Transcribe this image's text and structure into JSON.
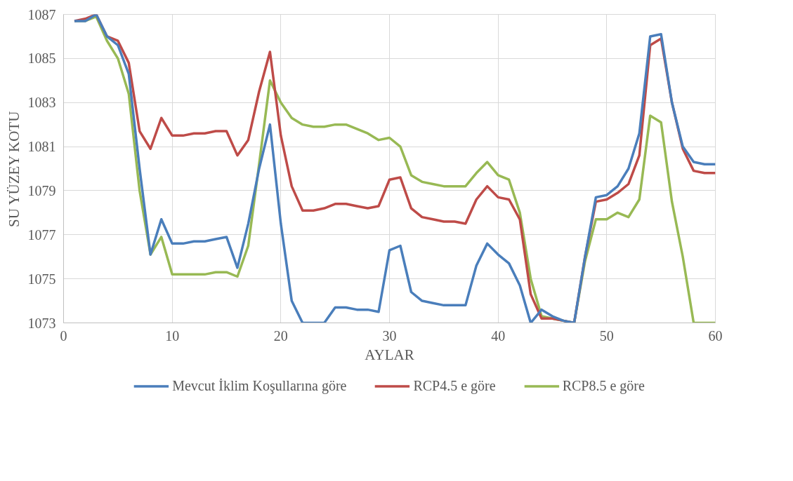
{
  "chart_data": {
    "type": "line",
    "xlabel": "AYLAR",
    "ylabel": "SU YÜZEY KOTU",
    "x": [
      1,
      2,
      3,
      4,
      5,
      6,
      7,
      8,
      9,
      10,
      11,
      12,
      13,
      14,
      15,
      16,
      17,
      18,
      19,
      20,
      21,
      22,
      23,
      24,
      25,
      26,
      27,
      28,
      29,
      30,
      31,
      32,
      33,
      34,
      35,
      36,
      37,
      38,
      39,
      40,
      41,
      42,
      43,
      44,
      45,
      46,
      47,
      48,
      49,
      50,
      51,
      52,
      53,
      54,
      55,
      56,
      57,
      58,
      59,
      60
    ],
    "series": [
      {
        "name": "Mevcut İklim Koşullarına göre",
        "color": "#4a7ebb",
        "values": [
          1086.7,
          1086.7,
          1087.0,
          1086.0,
          1085.6,
          1084.3,
          1080.0,
          1076.1,
          1077.7,
          1076.6,
          1076.6,
          1076.7,
          1076.7,
          1076.8,
          1076.9,
          1075.5,
          1077.5,
          1080.0,
          1082.0,
          1077.5,
          1074.0,
          1073.0,
          1073.0,
          1073.0,
          1073.7,
          1073.7,
          1073.6,
          1073.6,
          1073.5,
          1076.3,
          1076.5,
          1074.4,
          1074.0,
          1073.9,
          1073.8,
          1073.8,
          1073.8,
          1075.6,
          1076.6,
          1076.1,
          1075.7,
          1074.7,
          1073.0,
          1073.6,
          1073.3,
          1073.1,
          1073.0,
          1076.0,
          1078.7,
          1078.8,
          1079.2,
          1080.0,
          1081.6,
          1086.0,
          1086.1,
          1083.0,
          1081.0,
          1080.3,
          1080.2,
          1080.2
        ]
      },
      {
        "name": "RCP4.5 e göre",
        "color": "#be4b48",
        "values": [
          1086.7,
          1086.8,
          1087.0,
          1086.0,
          1085.8,
          1084.8,
          1081.7,
          1080.9,
          1082.3,
          1081.5,
          1081.5,
          1081.6,
          1081.6,
          1081.7,
          1081.7,
          1080.6,
          1081.3,
          1083.5,
          1085.3,
          1081.5,
          1079.2,
          1078.1,
          1078.1,
          1078.2,
          1078.4,
          1078.4,
          1078.3,
          1078.2,
          1078.3,
          1079.5,
          1079.6,
          1078.2,
          1077.8,
          1077.7,
          1077.6,
          1077.6,
          1077.5,
          1078.6,
          1079.2,
          1078.7,
          1078.6,
          1077.7,
          1074.3,
          1073.2,
          1073.2,
          1073.1,
          1073.0,
          1076.0,
          1078.5,
          1078.6,
          1078.9,
          1079.3,
          1080.6,
          1085.6,
          1085.9,
          1083.0,
          1080.9,
          1079.9,
          1079.8,
          1079.8
        ]
      },
      {
        "name": "RCP8.5 e göre",
        "color": "#98b954",
        "values": [
          1086.7,
          1086.7,
          1086.9,
          1085.8,
          1085.0,
          1083.4,
          1079.0,
          1076.1,
          1076.9,
          1075.2,
          1075.2,
          1075.2,
          1075.2,
          1075.3,
          1075.3,
          1075.1,
          1076.5,
          1080.2,
          1084.0,
          1083.0,
          1082.3,
          1082.0,
          1081.9,
          1081.9,
          1082.0,
          1082.0,
          1081.8,
          1081.6,
          1081.3,
          1081.4,
          1081.0,
          1079.7,
          1079.4,
          1079.3,
          1079.2,
          1079.2,
          1079.2,
          1079.8,
          1080.3,
          1079.7,
          1079.5,
          1078.0,
          1075.0,
          1073.3,
          1073.2,
          1073.1,
          1073.0,
          1075.8,
          1077.7,
          1077.7,
          1078.0,
          1077.8,
          1078.6,
          1082.4,
          1082.1,
          1078.5,
          1076.0,
          1073.0,
          1073.0,
          1073.0
        ]
      }
    ],
    "xlim": [
      0,
      60
    ],
    "xticks": [
      0,
      10,
      20,
      30,
      40,
      50,
      60
    ],
    "ylim": [
      1073,
      1087
    ],
    "yticks": [
      1073,
      1075,
      1077,
      1079,
      1081,
      1083,
      1085,
      1087
    ],
    "grid": true,
    "legend": "bottom",
    "marker": "none",
    "line_style": "solid"
  }
}
